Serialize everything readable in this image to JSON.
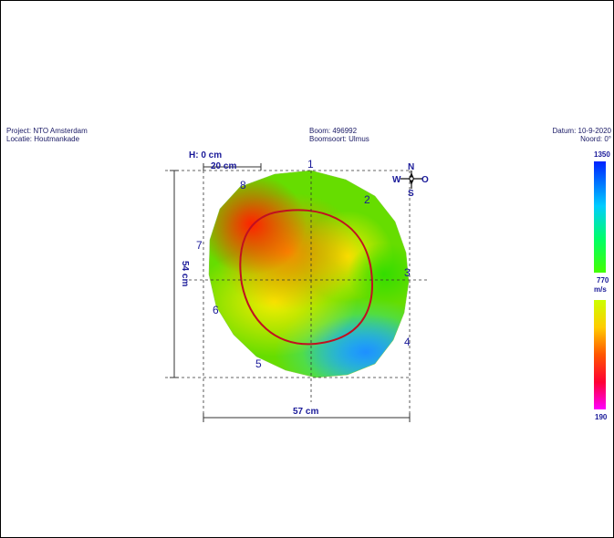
{
  "header": {
    "project": "Project: NTO Amsterdam",
    "location": "Locatie: Houtmankade",
    "tree": "Boom: 496992",
    "species": "Boomsoort: Ulmus",
    "date": "Datum: 10-9-2020",
    "north": "Noord: 0°"
  },
  "compass": {
    "n": "N",
    "w": "W",
    "o": "O",
    "s": "S"
  },
  "dims": {
    "height": "H: 0 cm",
    "scale_bar": "20 cm",
    "depth": "54 cm",
    "width": "57 cm"
  },
  "scale": {
    "max": "1350",
    "mid": "770",
    "unit": "m/s",
    "min": "190"
  },
  "chart_data": {
    "type": "heatmap",
    "title": "",
    "color_scale": {
      "min": 190,
      "mid": 770,
      "max": 1350,
      "unit": "m/s",
      "colors_low_to_high": [
        "#ff00ff",
        "#ff0000",
        "#ff8800",
        "#ffff00",
        "#88ff00",
        "#00dd00",
        "#00dddd",
        "#0044ff"
      ]
    },
    "extent_cm": {
      "width": 57,
      "depth": 54
    },
    "sensors": [
      "1",
      "2",
      "3",
      "4",
      "5",
      "6",
      "7",
      "8"
    ],
    "regions": [
      {
        "location": "top-left (7-8)",
        "color": "#ff3300",
        "velocity_band": "low"
      },
      {
        "location": "center-left",
        "color": "#ff8800",
        "velocity_band": "low"
      },
      {
        "location": "center",
        "color": "#ffcc00",
        "velocity_band": "medium"
      },
      {
        "location": "right (2-3)",
        "color": "#66dd00",
        "velocity_band": "medium-high"
      },
      {
        "location": "bottom-right (4-5)",
        "color": "#22aaff",
        "velocity_band": "high"
      }
    ]
  }
}
